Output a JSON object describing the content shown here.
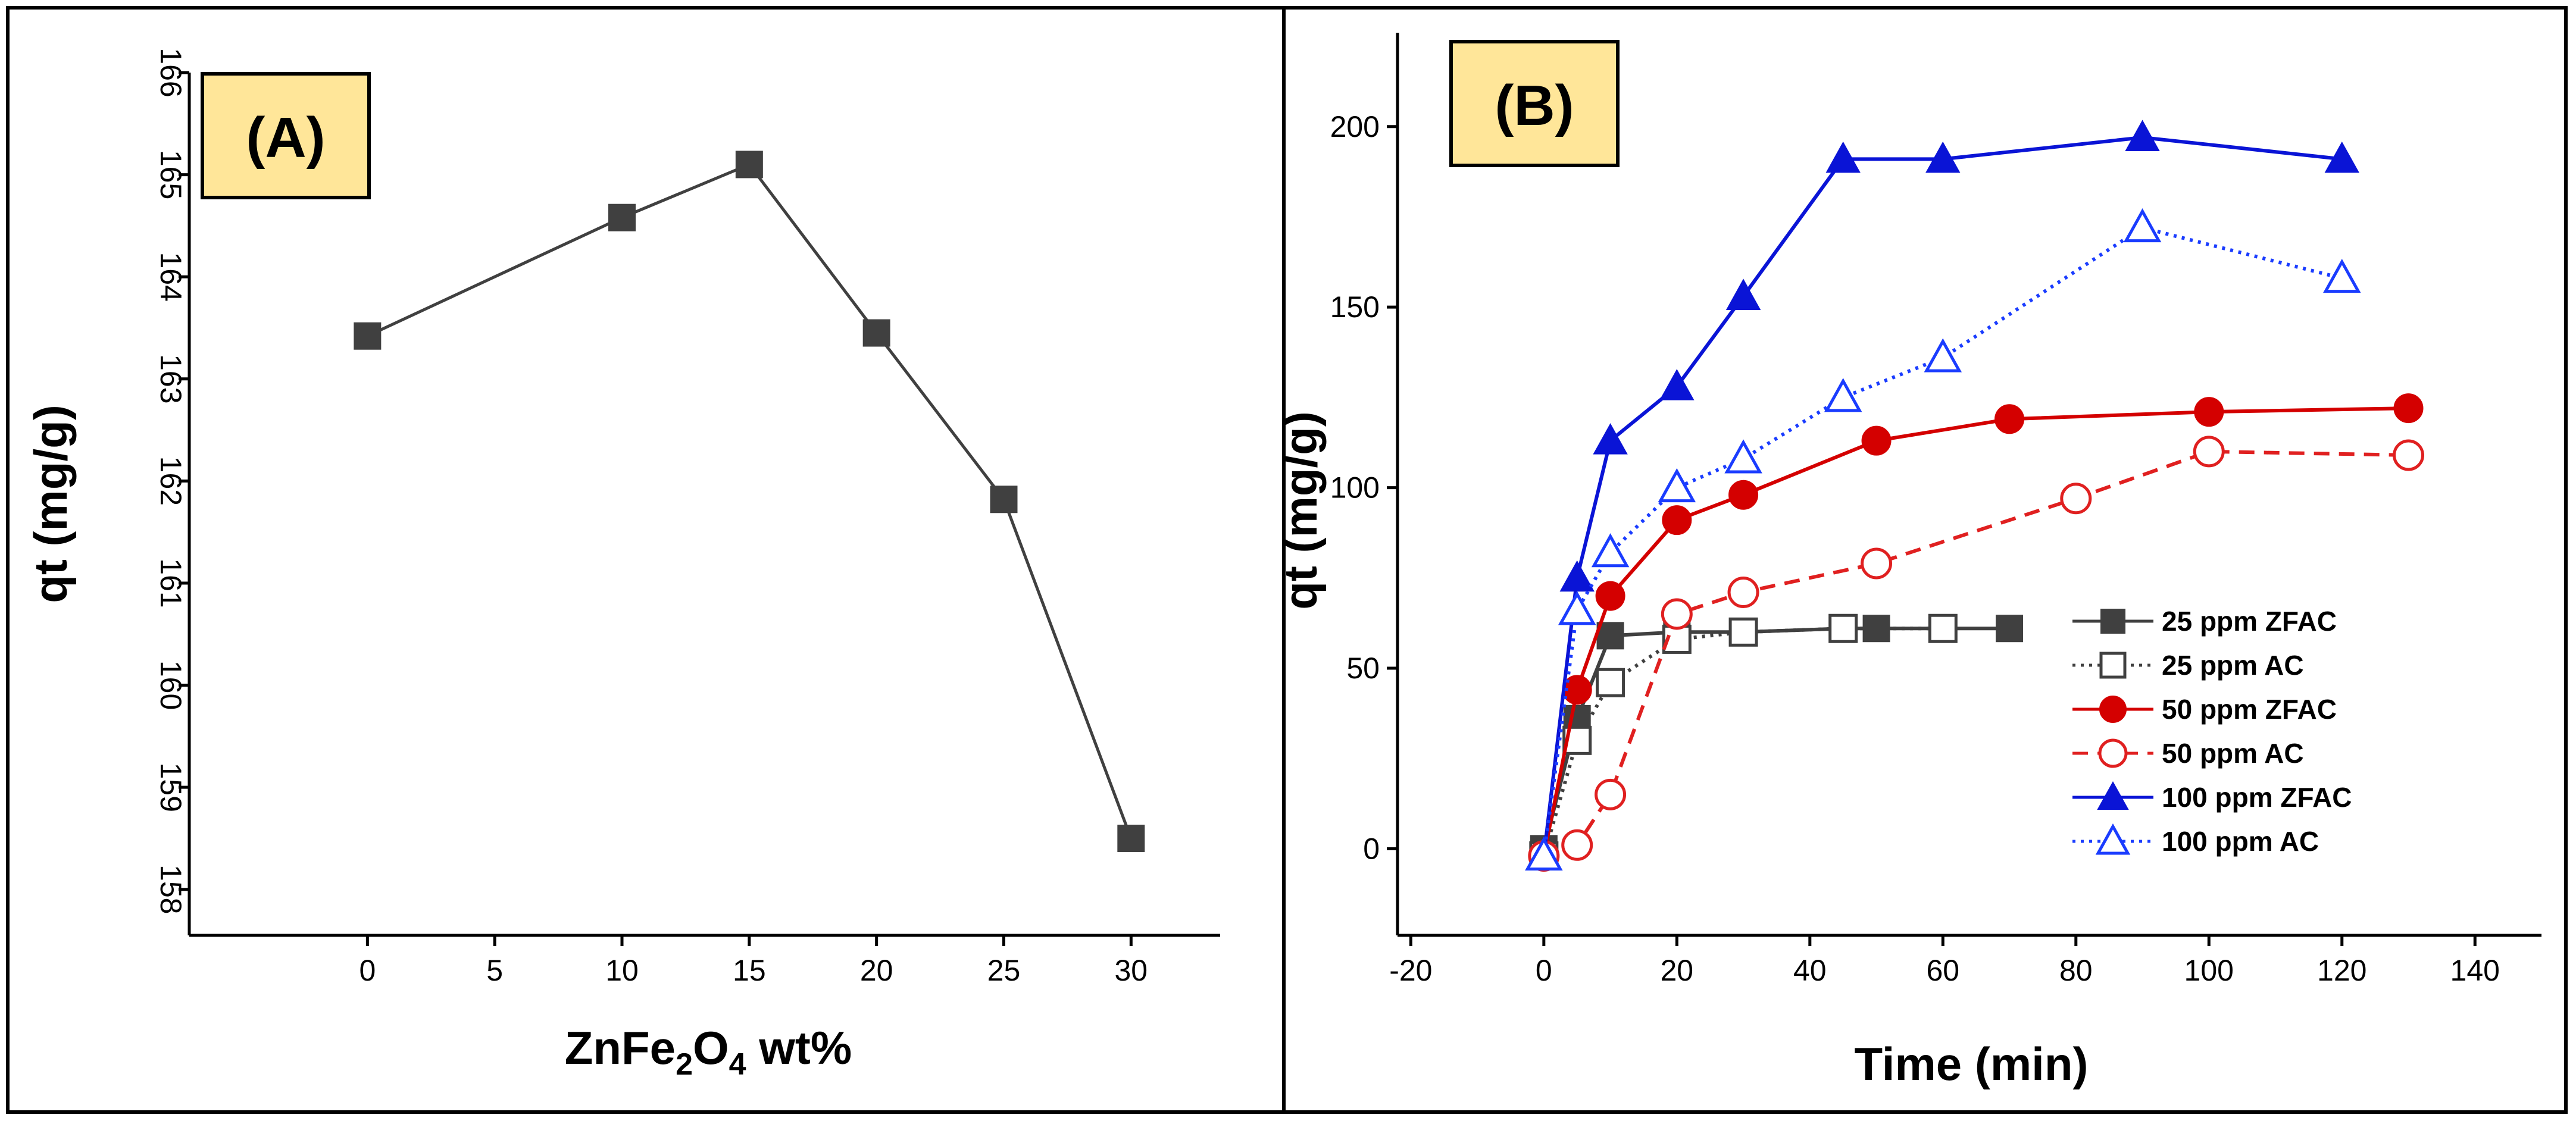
{
  "chart_data": [
    {
      "type": "line",
      "panel_label": "(A)",
      "xlabel": "ZnFe2O4 wt%",
      "xlabel_parts": {
        "base": "ZnFe",
        "sub1": "2",
        "mid": "O",
        "sub2": "4",
        "rest": " wt%"
      },
      "ylabel": "qt (mg/g)",
      "xlim": [
        -7,
        33.5
      ],
      "ylim": [
        157.55,
        166
      ],
      "x_ticks": [
        0,
        5,
        10,
        15,
        20,
        25,
        30
      ],
      "y_ticks": [
        158,
        159,
        160,
        161,
        162,
        163,
        164,
        165,
        166
      ],
      "series": [
        {
          "name": "qt",
          "color": "#404040",
          "marker": "square-filled",
          "x": [
            0,
            10,
            15,
            20,
            25,
            30
          ],
          "y": [
            163.42,
            164.58,
            165.1,
            163.45,
            161.82,
            158.5
          ]
        }
      ]
    },
    {
      "type": "line",
      "panel_label": "(B)",
      "xlabel": "Time (min)",
      "ylabel": "qt (mg/g)",
      "xlim": [
        -22,
        150
      ],
      "ylim": [
        -24,
        226
      ],
      "x_ticks": [
        -20,
        0,
        20,
        40,
        60,
        80,
        100,
        120,
        140
      ],
      "y_ticks": [
        0,
        50,
        100,
        150,
        200
      ],
      "legend_position": "bottom-right",
      "series": [
        {
          "name": "25 ppm ZFAC",
          "color": "#404040",
          "marker": "square-filled",
          "line": "solid",
          "x": [
            0,
            5,
            10,
            20,
            30,
            45,
            50,
            60,
            70
          ],
          "y": [
            0,
            36,
            59,
            60,
            60,
            61,
            61,
            61,
            61
          ]
        },
        {
          "name": "25 ppm AC",
          "color": "#404040",
          "marker": "square-open",
          "line": "dotted",
          "x": [
            0,
            5,
            10,
            20,
            30,
            45,
            60
          ],
          "y": [
            -2,
            30,
            46,
            58,
            60,
            61,
            61
          ]
        },
        {
          "name": "50 ppm ZFAC",
          "color": "#d40000",
          "marker": "circle-filled",
          "line": "solid",
          "x": [
            0,
            5,
            10,
            20,
            30,
            50,
            70,
            100,
            130
          ],
          "y": [
            -2,
            44,
            70,
            91,
            98,
            113,
            119,
            121,
            122
          ]
        },
        {
          "name": "50 ppm AC",
          "color": "#e02020",
          "marker": "circle-open",
          "line": "dashed",
          "x": [
            0,
            5,
            10,
            20,
            30,
            50,
            80,
            100,
            130
          ],
          "y": [
            -2,
            1,
            15,
            65,
            71,
            79,
            97,
            110,
            109
          ]
        },
        {
          "name": "100 ppm ZFAC",
          "color": "#0a14d6",
          "marker": "triangle-filled",
          "line": "solid",
          "x": [
            0,
            5,
            10,
            20,
            30,
            45,
            60,
            90,
            120
          ],
          "y": [
            -2,
            75,
            113,
            128,
            153,
            191,
            191,
            197,
            191
          ]
        },
        {
          "name": "100 ppm AC",
          "color": "#1a3cff",
          "marker": "triangle-open",
          "line": "dotted",
          "x": [
            0,
            5,
            10,
            20,
            30,
            45,
            60,
            90,
            120
          ],
          "y": [
            -2,
            66,
            82,
            100,
            108,
            125,
            136,
            172,
            158
          ]
        }
      ]
    }
  ]
}
